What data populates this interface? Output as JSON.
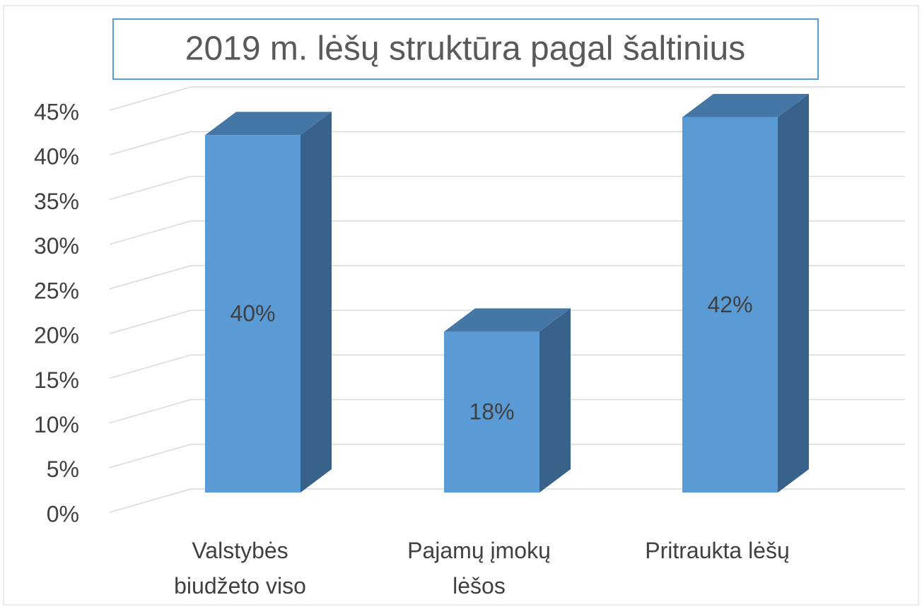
{
  "chart_data": {
    "type": "bar3d",
    "title": "2019 m.  lėšų struktūra pagal šaltinius",
    "categories": [
      "Valstybės biudžeto viso",
      "Pajamų įmokų lėšos",
      "Pritraukta lėšų"
    ],
    "values": [
      40,
      18,
      42
    ],
    "value_labels": [
      "40%",
      "18%",
      "42%"
    ],
    "color": "#5b9bd5",
    "ylim": [
      0,
      45
    ],
    "yticks": [
      {
        "value": 0,
        "label": "0%"
      },
      {
        "value": 5,
        "label": "5%"
      },
      {
        "value": 10,
        "label": "10%"
      },
      {
        "value": 15,
        "label": "15%"
      },
      {
        "value": 20,
        "label": "20%"
      },
      {
        "value": 25,
        "label": "25%"
      },
      {
        "value": 30,
        "label": "30%"
      },
      {
        "value": 35,
        "label": "35%"
      },
      {
        "value": 40,
        "label": "40%"
      },
      {
        "value": 45,
        "label": "45%"
      }
    ],
    "grid": true
  }
}
